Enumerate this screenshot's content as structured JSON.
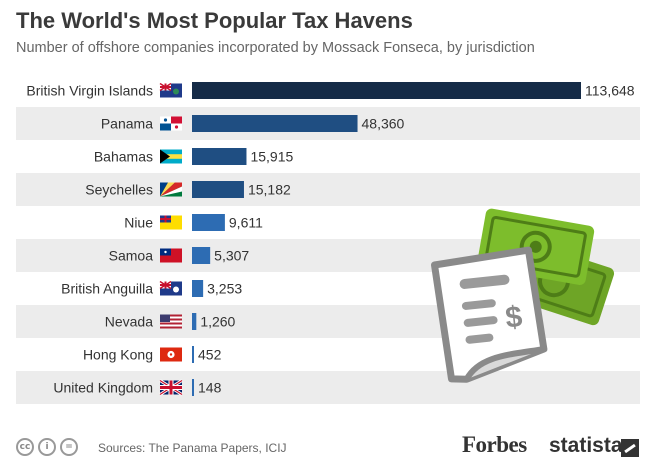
{
  "header": {
    "title": "The World's Most Popular Tax Havens",
    "subtitle": "Number of offshore companies incorporated by Mossack Fonseca, by jurisdiction"
  },
  "footer": {
    "source": "Sources: The Panama Papers, ICIJ",
    "license_icons": [
      "cc",
      "i",
      "="
    ],
    "brand_forbes": "Forbes",
    "brand_statista": "statista"
  },
  "colors": {
    "bar_dark": "#152b47",
    "bar_mid": "#1f4e82",
    "bar_light": "#2d6cb3",
    "stripe": "#ececec",
    "money_green": "#77b82a",
    "receipt_gray": "#8a8a8a"
  },
  "illustration": {
    "icon": "receipt-and-money-icon",
    "currency_symbol": "$"
  },
  "chart_data": {
    "type": "bar",
    "orientation": "horizontal",
    "title": "The World's Most Popular Tax Havens",
    "subtitle": "Number of offshore companies incorporated by Mossack Fonseca, by jurisdiction",
    "categories": [
      "British Virgin Islands",
      "Panama",
      "Bahamas",
      "Seychelles",
      "Niue",
      "Samoa",
      "British Anguilla",
      "Nevada",
      "Hong Kong",
      "United Kingdom"
    ],
    "values": [
      113648,
      48360,
      15915,
      15182,
      9611,
      5307,
      3253,
      1260,
      452,
      148
    ],
    "value_labels": [
      "113,648",
      "48,360",
      "15,915",
      "15,182",
      "9,611",
      "5,307",
      "3,253",
      "1,260",
      "452",
      "148"
    ],
    "flags": [
      "bvi-flag-icon",
      "panama-flag-icon",
      "bahamas-flag-icon",
      "seychelles-flag-icon",
      "niue-flag-icon",
      "samoa-flag-icon",
      "anguilla-flag-icon",
      "usa-flag-icon",
      "hong-kong-flag-icon",
      "uk-flag-icon"
    ],
    "xlim": [
      0,
      113648
    ],
    "grid": false,
    "legend": "none"
  }
}
